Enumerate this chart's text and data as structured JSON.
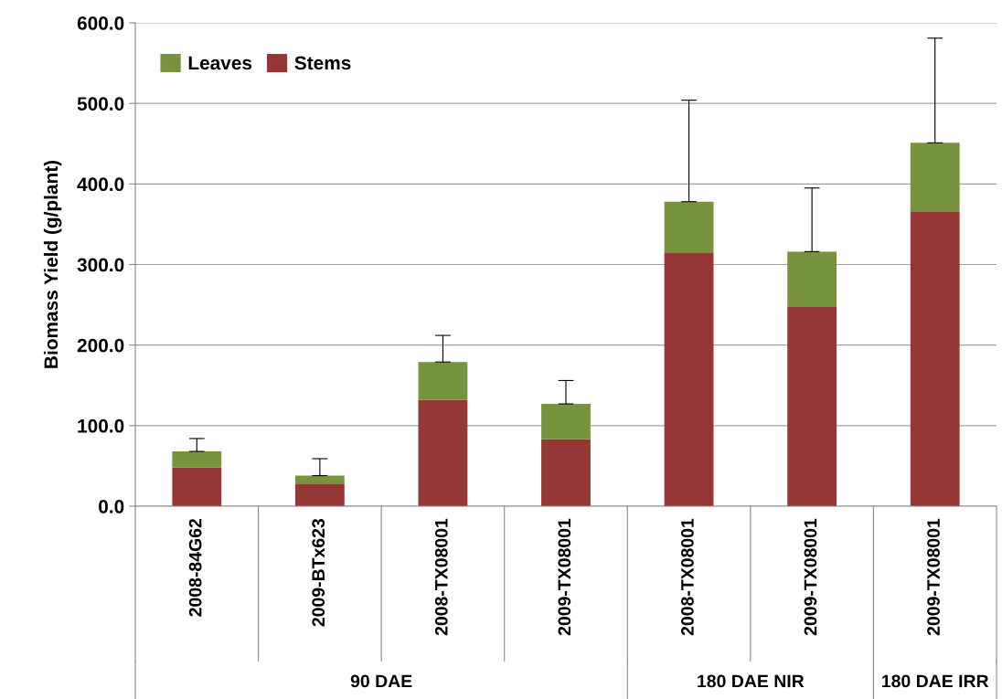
{
  "chart_data": {
    "type": "bar",
    "stacked": true,
    "ylabel": "Biomass Yield (g/plant)",
    "categories": [
      "2008-84G62",
      "2009-BTx623",
      "2008-TX08001",
      "2009-TX08001",
      "2008-TX08001",
      "2009-TX08001",
      "2009-TX08001"
    ],
    "series": [
      {
        "name": "Stems",
        "color": "#953735",
        "values": [
          48,
          28,
          132,
          83,
          315,
          248,
          366
        ]
      },
      {
        "name": "Leaves",
        "color": "#77933c",
        "values": [
          20,
          10,
          47,
          44,
          63,
          68,
          85
        ],
        "errors": [
          [
            68,
            84
          ],
          [
            38,
            59
          ],
          [
            179,
            212
          ],
          [
            127,
            156
          ],
          [
            378,
            504
          ],
          [
            316,
            395
          ],
          [
            451,
            581
          ]
        ]
      }
    ],
    "ylim": [
      0,
      600
    ],
    "yticks": [
      {
        "value": 0,
        "label": "0.0"
      },
      {
        "value": 100,
        "label": "100.0"
      },
      {
        "value": 200,
        "label": "200.0"
      },
      {
        "value": 300,
        "label": "300.0"
      },
      {
        "value": 400,
        "label": "400.0"
      },
      {
        "value": 500,
        "label": "500.0"
      },
      {
        "value": 600,
        "label": "600.0"
      }
    ],
    "grid": "y",
    "legend": "top left",
    "annotations": [
      "90 DAE",
      "180 DAE NIR",
      "180 DAE IRR"
    ]
  }
}
